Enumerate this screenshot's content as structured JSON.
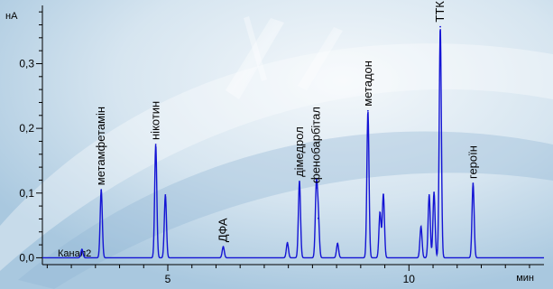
{
  "chart_data": {
    "type": "line",
    "ylabel": "нА",
    "xlabel": "мин",
    "channel": "Канал2",
    "xlim": [
      2.4,
      12.8
    ],
    "ylim": [
      -0.005,
      0.39
    ],
    "x_ticks": [
      5,
      10
    ],
    "x_tick_labels": [
      "5",
      "10"
    ],
    "y_ticks": [
      0.0,
      0.1,
      0.2,
      0.3
    ],
    "y_tick_labels": [
      "0,0",
      "0,1",
      "0,2",
      "0,3"
    ],
    "baseline": 0.0,
    "peaks": [
      {
        "x": 3.22,
        "y": 0.013,
        "label": ""
      },
      {
        "x": 3.62,
        "y": 0.105,
        "label": "метамфетамін"
      },
      {
        "x": 4.75,
        "y": 0.175,
        "label": "нікотин"
      },
      {
        "x": 4.95,
        "y": 0.097,
        "label": ""
      },
      {
        "x": 6.15,
        "y": 0.017,
        "label": "ДФА"
      },
      {
        "x": 7.48,
        "y": 0.023,
        "label": ""
      },
      {
        "x": 7.73,
        "y": 0.118,
        "label": "дімедрол"
      },
      {
        "x": 8.08,
        "y": 0.108,
        "label": "фенобарбітал"
      },
      {
        "x": 8.12,
        "y": 0.061,
        "label": ""
      },
      {
        "x": 8.52,
        "y": 0.022,
        "label": ""
      },
      {
        "x": 9.15,
        "y": 0.227,
        "label": "метадон"
      },
      {
        "x": 9.4,
        "y": 0.07,
        "label": ""
      },
      {
        "x": 9.47,
        "y": 0.098,
        "label": ""
      },
      {
        "x": 10.25,
        "y": 0.048,
        "label": ""
      },
      {
        "x": 10.42,
        "y": 0.097,
        "label": ""
      },
      {
        "x": 10.52,
        "y": 0.101,
        "label": ""
      },
      {
        "x": 10.65,
        "y": 0.357,
        "label": "ТТК"
      },
      {
        "x": 11.33,
        "y": 0.115,
        "label": "героїн"
      }
    ],
    "colors": {
      "trace": "#1414d4",
      "axis": "#000000",
      "background": "#dbe8f2"
    }
  }
}
